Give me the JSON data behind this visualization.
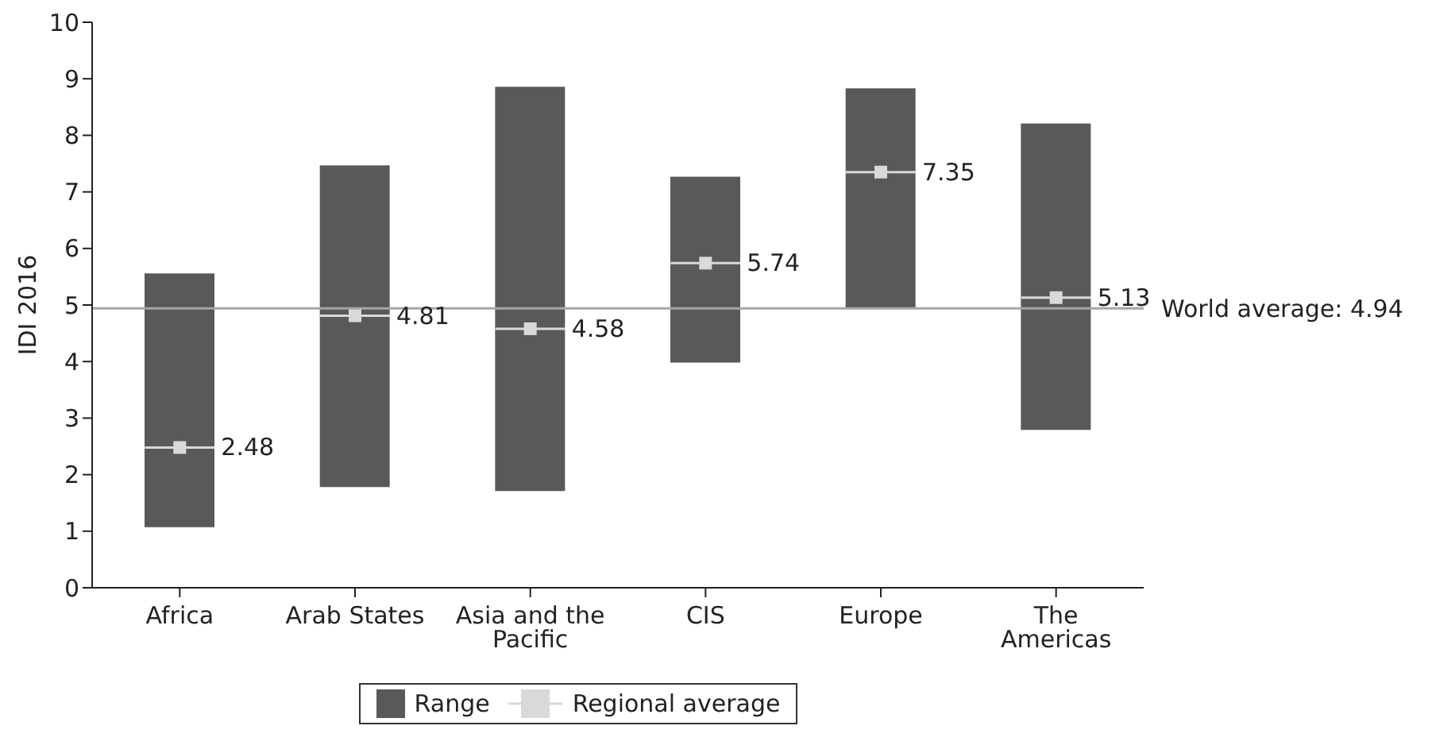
{
  "chart_data": {
    "type": "bar",
    "ylabel": "IDI 2016",
    "categories": [
      "Africa",
      "Arab States",
      "Asia and the Pacific",
      "CIS",
      "Europe",
      "The Americas"
    ],
    "series": [
      {
        "name": "Range",
        "color": "#58595b",
        "base": [
          1.07,
          1.78,
          1.71,
          3.98,
          4.95,
          2.79
        ],
        "values": [
          4.49,
          5.69,
          7.15,
          3.29,
          3.88,
          5.42
        ]
      },
      {
        "name": "Regional average",
        "type": "scatter",
        "color": "#d9d9d9",
        "marker": "square",
        "values": [
          2.48,
          4.81,
          4.58,
          5.74,
          7.35,
          5.13
        ],
        "value_labels": [
          "2.48",
          "4.81",
          "4.58",
          "5.74",
          "7.35",
          "5.13"
        ]
      }
    ],
    "ylim": [
      0,
      10
    ],
    "yticks": [
      0,
      1,
      2,
      3,
      4,
      5,
      6,
      7,
      8,
      9,
      10
    ],
    "grid": false,
    "legend": "bottom",
    "ref_lines": [
      {
        "axis": "y",
        "value": 4.94,
        "label": "World average: 4.94",
        "color": "#a6a6a6"
      }
    ]
  }
}
